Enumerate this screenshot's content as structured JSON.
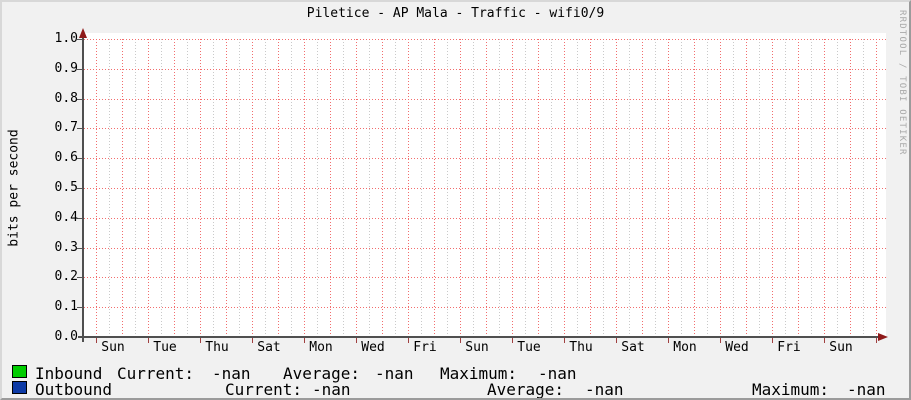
{
  "watermark": "RRDTOOL / TOBI OETIKER",
  "chart_data": {
    "type": "area",
    "title": "Piletice - AP Mala - Traffic - wifi0/9",
    "ylabel": "bits per second",
    "xlabel": "",
    "ylim": [
      0.0,
      1.0
    ],
    "y_ticks": [
      "1.0",
      "0.9",
      "0.8",
      "0.7",
      "0.6",
      "0.5",
      "0.4",
      "0.3",
      "0.2",
      "0.1",
      "0.0"
    ],
    "x_tick_labels": [
      "Sun",
      "Tue",
      "Thu",
      "Sat",
      "Mon",
      "Wed",
      "Fri",
      "Sun",
      "Tue",
      "Thu",
      "Sat",
      "Mon",
      "Wed",
      "Fri",
      "Sun"
    ],
    "grid": true,
    "legend_position": "bottom",
    "series": [
      {
        "name": "Inbound",
        "color": "#00cc00",
        "values": []
      },
      {
        "name": "Outbound",
        "color": "#0d3aa6",
        "values": []
      }
    ],
    "style": {
      "grid_red": "#f26d6d",
      "grid_gray": "#c9c9c9",
      "axis": "#4f4f4f",
      "arrow": "#8f1a1a",
      "canvas": "#ffffff",
      "background": "#f1f1f1"
    }
  },
  "legend": {
    "rows": [
      {
        "swatch_color": "#00cc00",
        "label": "Inbound",
        "current_label": "Current:",
        "current": "-nan",
        "average_label": "Average:",
        "average": "-nan",
        "maximum_label": "Maximum:",
        "maximum": "-nan"
      },
      {
        "swatch_color": "#0d3aa6",
        "label": "Outbound",
        "current_label": "Current:",
        "current": "-nan",
        "average_label": "Average:",
        "average": "-nan",
        "maximum_label": "Maximum:",
        "maximum": "-nan"
      }
    ]
  }
}
